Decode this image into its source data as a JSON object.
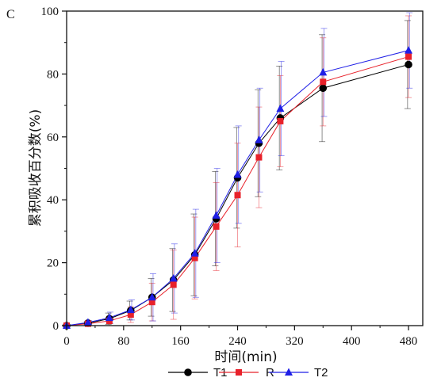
{
  "panel_label": "C",
  "chart_data": {
    "type": "line",
    "xlabel": "时间(min)",
    "ylabel": "累积吸收百分数(%)",
    "xlim": [
      0,
      500
    ],
    "ylim": [
      0,
      100
    ],
    "xticks": [
      0,
      80,
      160,
      240,
      320,
      400,
      480
    ],
    "yticks": [
      0,
      20,
      40,
      60,
      80,
      100
    ],
    "x": [
      0,
      30,
      60,
      90,
      120,
      150,
      180,
      210,
      240,
      270,
      300,
      360,
      480
    ],
    "grid": false,
    "legend_position": "bottom",
    "series": [
      {
        "name": "T1",
        "color": "#000000",
        "marker": "circle",
        "values": [
          0,
          0.8,
          2.2,
          4.8,
          9.0,
          14.5,
          22.5,
          34.0,
          47.0,
          58.0,
          66.0,
          75.5,
          83.0
        ],
        "errors": [
          0.2,
          0.5,
          1.8,
          3.0,
          6.0,
          10.0,
          13.0,
          15.0,
          16.0,
          17.0,
          16.5,
          17.0,
          14.0
        ]
      },
      {
        "name": "R",
        "color": "#e8212a",
        "marker": "square",
        "values": [
          0,
          0.6,
          1.5,
          3.5,
          7.5,
          13.0,
          21.5,
          31.5,
          41.5,
          53.5,
          65.0,
          77.5,
          85.5
        ],
        "errors": [
          0.2,
          0.5,
          1.5,
          2.5,
          6.0,
          11.0,
          13.0,
          14.0,
          16.5,
          16.0,
          14.5,
          14.0,
          13.0
        ]
      },
      {
        "name": "T2",
        "color": "#1f1fe6",
        "marker": "triangle",
        "values": [
          0,
          1.0,
          2.5,
          5.0,
          9.0,
          15.0,
          23.0,
          35.0,
          48.0,
          59.0,
          69.0,
          80.5,
          87.5
        ],
        "errors": [
          0.2,
          0.6,
          1.8,
          3.2,
          7.5,
          11.0,
          14.0,
          15.0,
          15.5,
          16.5,
          15.0,
          14.0,
          12.0
        ]
      }
    ]
  }
}
